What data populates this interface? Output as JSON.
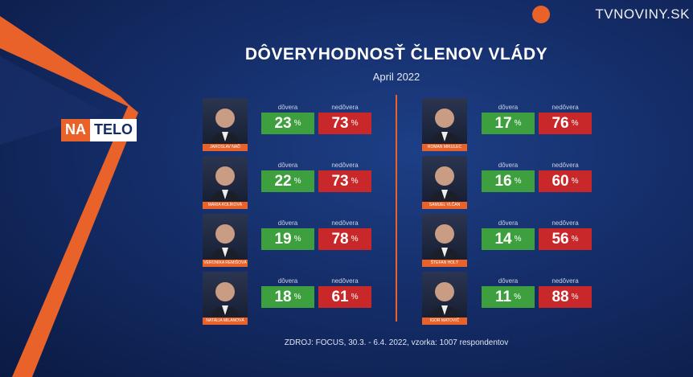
{
  "header": {
    "logo": "TVNOVINY.SK",
    "show_left": "NA",
    "show_right": "TELO"
  },
  "title": "DÔVERYHODNOSŤ ČLENOV VLÁDY",
  "subtitle": "April 2022",
  "labels": {
    "trust": "dôvera",
    "distrust": "nedôvera",
    "unit": "%"
  },
  "members": [
    {
      "name": "JAROSLAV NAĎ",
      "trust": 23,
      "distrust": 73
    },
    {
      "name": "MÁRIA KOLÍKOVÁ",
      "trust": 22,
      "distrust": 73
    },
    {
      "name": "VERONIKA REMIŠOVÁ",
      "trust": 19,
      "distrust": 78
    },
    {
      "name": "NATÁLIA MILANOVÁ",
      "trust": 18,
      "distrust": 61
    },
    {
      "name": "ROMAN MIKULEC",
      "trust": 17,
      "distrust": 76
    },
    {
      "name": "SAMUEL VLČAN",
      "trust": 16,
      "distrust": 60
    },
    {
      "name": "ŠTEFAN HOLÝ",
      "trust": 14,
      "distrust": 56
    },
    {
      "name": "IGOR MATOVIČ",
      "trust": 11,
      "distrust": 88
    }
  ],
  "source": "ZDROJ: FOCUS, 30.3. - 6.4. 2022, vzorka: 1007 respondentov"
}
